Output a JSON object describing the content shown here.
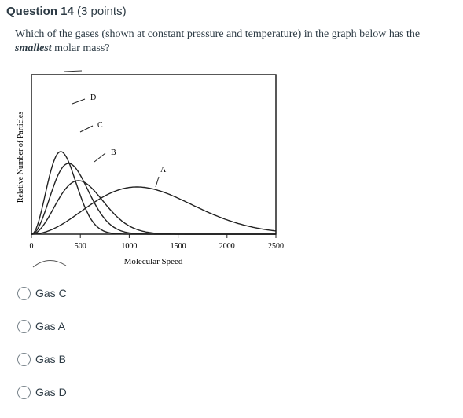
{
  "question": {
    "number_label": "Question 14",
    "points": "(3 points)",
    "text_before": "Which of the gases (shown at constant pressure and temperature) in the graph below has the",
    "text_emphasis": "smallest",
    "text_after": "molar mass?"
  },
  "chart_data": {
    "type": "line",
    "xlabel": "Molecular Speed",
    "ylabel": "Relative Number of Particles",
    "xlim": [
      0,
      2500
    ],
    "x_ticks": [
      "0",
      "500",
      "1000",
      "1500",
      "2000",
      "2500"
    ],
    "grid": false,
    "series": [
      {
        "name": "D",
        "peak_x": 300
      },
      {
        "name": "C",
        "peak_x": 380
      },
      {
        "name": "B",
        "peak_x": 480
      },
      {
        "name": "A",
        "peak_x": 1080
      }
    ]
  },
  "answers": [
    {
      "label": "Gas C"
    },
    {
      "label": "Gas A"
    },
    {
      "label": "Gas B"
    },
    {
      "label": "Gas D"
    }
  ]
}
